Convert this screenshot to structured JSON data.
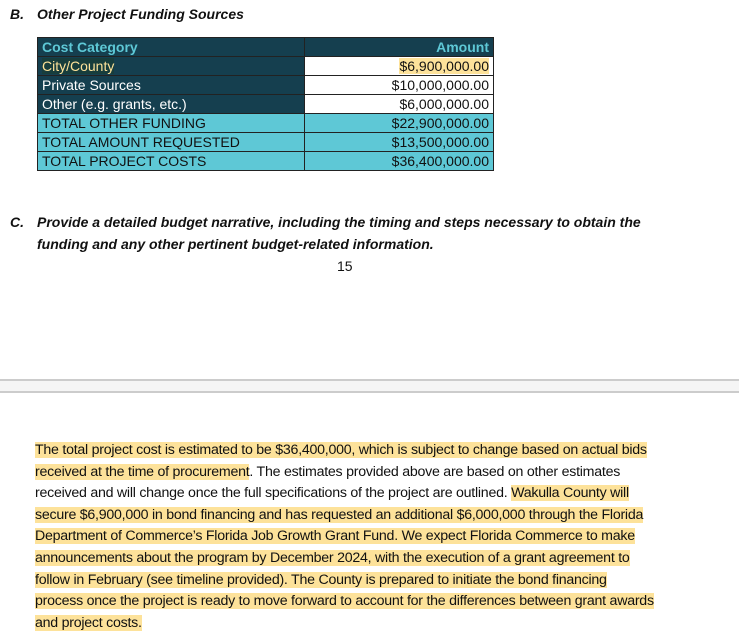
{
  "section_b": {
    "label": "B.",
    "title": "Other Project Funding Sources"
  },
  "table": {
    "headers": [
      "Cost Category",
      "Amount"
    ],
    "rows": [
      {
        "category": "City/County",
        "amount": "$6,900,000.00"
      },
      {
        "category": "Private Sources",
        "amount": "$10,000,000.00"
      },
      {
        "category": "Other (e.g. grants, etc.)",
        "amount": "$6,000,000.00"
      },
      {
        "category": "TOTAL OTHER FUNDING",
        "amount": "$22,900,000.00"
      },
      {
        "category": "TOTAL AMOUNT REQUESTED",
        "amount": "$13,500,000.00"
      },
      {
        "category": "TOTAL PROJECT COSTS",
        "amount": "$36,400,000.00"
      }
    ]
  },
  "section_c": {
    "label": "C.",
    "line1": "Provide a detailed budget narrative, including the timing and steps necessary to obtain the",
    "line2": "funding and any other pertinent budget-related information."
  },
  "page_number": "15",
  "colors": {
    "dark_teal": "#153f4f",
    "cyan": "#5ec8d6",
    "highlight": "#fde29a"
  },
  "narrative": [
    [
      {
        "t": "The total project cost is estimated to be $36,400,000, which is subject to change based on actual bids",
        "hl": true
      }
    ],
    [
      {
        "t": "received at the time of procurement",
        "hl": true
      },
      {
        "t": ". The estimates provided above are based on other estimates",
        "hl": false
      }
    ],
    [
      {
        "t": "received and will change once the full specifications of the project are outlined. ",
        "hl": false
      },
      {
        "t": "Wakulla County will",
        "hl": true
      }
    ],
    [
      {
        "t": "secure $6,900,000 in bond financing and has requested an additional $6,000,000 through the Florida",
        "hl": true
      }
    ],
    [
      {
        "t": "Department of Commerce’s Florida Job Growth Grant Fund. We expect Florida Commerce to make",
        "hl": true
      }
    ],
    [
      {
        "t": "announcements about the program by December 2024, with the execution of a grant agreement to",
        "hl": true
      }
    ],
    [
      {
        "t": "follow in February (see timeline provided).  The County is prepared to initiate the bond financing",
        "hl": true
      }
    ],
    [
      {
        "t": "process once the project is ready to move forward to account for the differences between grant awards",
        "hl": true
      }
    ],
    [
      {
        "t": "and project costs.",
        "hl": true
      }
    ]
  ]
}
